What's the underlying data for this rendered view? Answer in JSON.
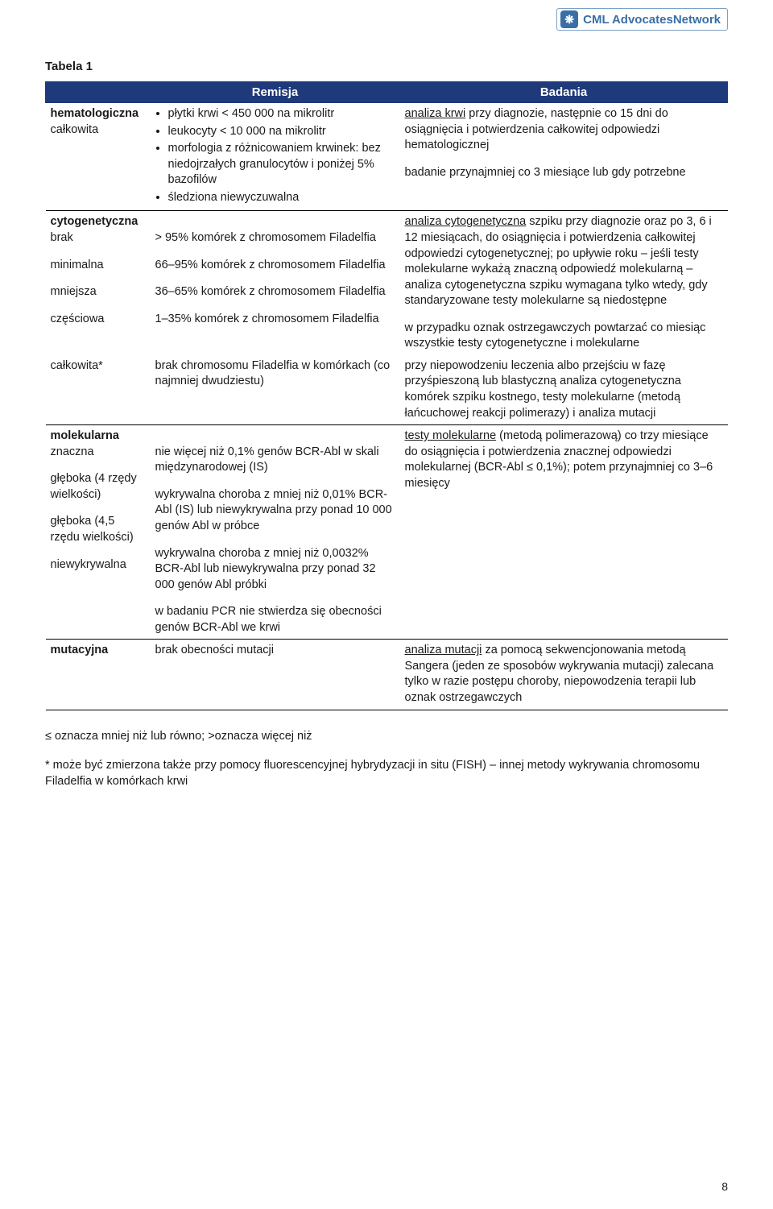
{
  "logo": {
    "icon": "❋",
    "text": "CML AdvocatesNetwork"
  },
  "title": "Tabela 1",
  "headers": {
    "col1": "",
    "col2": "Remisja",
    "col3": "Badania"
  },
  "rows": {
    "hemat": {
      "left_groups": [
        {
          "label_bold": "hematologiczna",
          "label_plain": "całkowita"
        }
      ],
      "mid_bullets": [
        "płytki krwi < 450 000 na mikrolitr",
        "leukocyty < 10 000 na mikrolitr",
        "morfologia z różnicowaniem krwinek: bez niedojrzałych granulocytów i poniżej 5% bazofilów",
        "śledziona niewyczuwalna"
      ],
      "right_paras": [
        {
          "ul": "analiza krwi",
          "rest": " przy diagnozie, następnie co 15 dni do osiągnięcia i potwierdzenia całkowitej odpowiedzi hematologicznej"
        },
        {
          "ul": "",
          "rest": "badanie przynajmniej co 3 miesiące lub gdy potrzebne"
        }
      ]
    },
    "cyto": {
      "left_groups": [
        {
          "label_bold": "cytogenetyczna",
          "label_plain": "brak",
          "mid": "> 95% komórek z chromosomem Filadelfia"
        },
        {
          "label_bold": "",
          "label_plain": "minimalna",
          "mid": "66–95% komórek z chromosomem Filadelfia"
        },
        {
          "label_bold": "",
          "label_plain": "mniejsza",
          "mid": "36–65% komórek z chromosomem Filadelfia"
        },
        {
          "label_bold": "",
          "label_plain": "częściowa",
          "mid": "1–35% komórek z chromosomem Filadelfia"
        }
      ],
      "right_paras": [
        {
          "ul": "analiza cytogenetyczna",
          "rest": " szpiku przy diagnozie oraz po 3, 6 i 12 miesiącach, do osiągnięcia i potwierdzenia całkowitej odpowiedzi cytogenetycznej; po upływie roku – jeśli testy molekularne wykażą znaczną odpowiedź molekularną – analiza cytogenetyczna szpiku wymagana tylko wtedy, gdy standaryzowane testy molekularne są niedostępne"
        },
        {
          "ul": "",
          "rest": "w przypadku oznak ostrzegawczych powtarzać co miesiąc wszystkie testy cytogenetyczne i molekularne"
        }
      ]
    },
    "calk": {
      "left": "całkowita*",
      "mid": "brak chromosomu Filadelfia w komórkach (co najmniej dwudziestu)",
      "right": "przy niepowodzeniu leczenia albo przejściu w fazę przyśpieszoną lub blastyczną analiza cytogenetyczna komórek szpiku kostnego, testy molekularne (metodą łańcuchowej reakcji polimerazy) i analiza mutacji"
    },
    "mol": {
      "left_groups": [
        {
          "label_bold": "molekularna",
          "label_plain": "znaczna",
          "mid": "nie więcej niż 0,1% genów BCR-Abl w skali międzynarodowej (IS)"
        },
        {
          "label_bold": "",
          "label_plain": "głęboka (4 rzędy wielkości)",
          "mid": "wykrywalna choroba z mniej niż 0,01% BCR-Abl (IS) lub niewykrywalna przy ponad 10 000 genów Abl w próbce"
        },
        {
          "label_bold": "",
          "label_plain": "głęboka (4,5 rzędu wielkości)",
          "mid": "wykrywalna choroba z mniej niż 0,0032% BCR-Abl lub niewykrywalna przy ponad 32 000 genów Abl próbki"
        },
        {
          "label_bold": "",
          "label_plain": "niewykrywalna",
          "mid": "w badaniu PCR nie stwierdza się obecności genów BCR-Abl we krwi"
        }
      ],
      "right_ul": "testy molekularne",
      "right_rest": " (metodą polimerazową) co trzy miesiące do osiągnięcia i potwierdzenia znacznej odpowiedzi molekularnej (BCR-Abl ≤ 0,1%); potem przynajmniej co 3–6 miesięcy"
    },
    "mut": {
      "left_bold": "mutacyjna",
      "mid": "brak obecności mutacji",
      "right_ul": "analiza mutacji",
      "right_rest": " za pomocą sekwencjonowania metodą Sangera (jeden ze sposobów wykrywania mutacji) zalecana tylko w razie postępu choroby, niepowodzenia terapii lub oznak ostrzegawczych"
    }
  },
  "footnote1": "≤ oznacza mniej niż lub równo; >oznacza więcej niż",
  "footnote2": "* może być zmierzona także przy pomocy fluorescencyjnej hybrydyzacji in situ (FISH) – innej metody wykrywania chromosomu Filadelfia w komórkach krwi",
  "page_number": "8"
}
